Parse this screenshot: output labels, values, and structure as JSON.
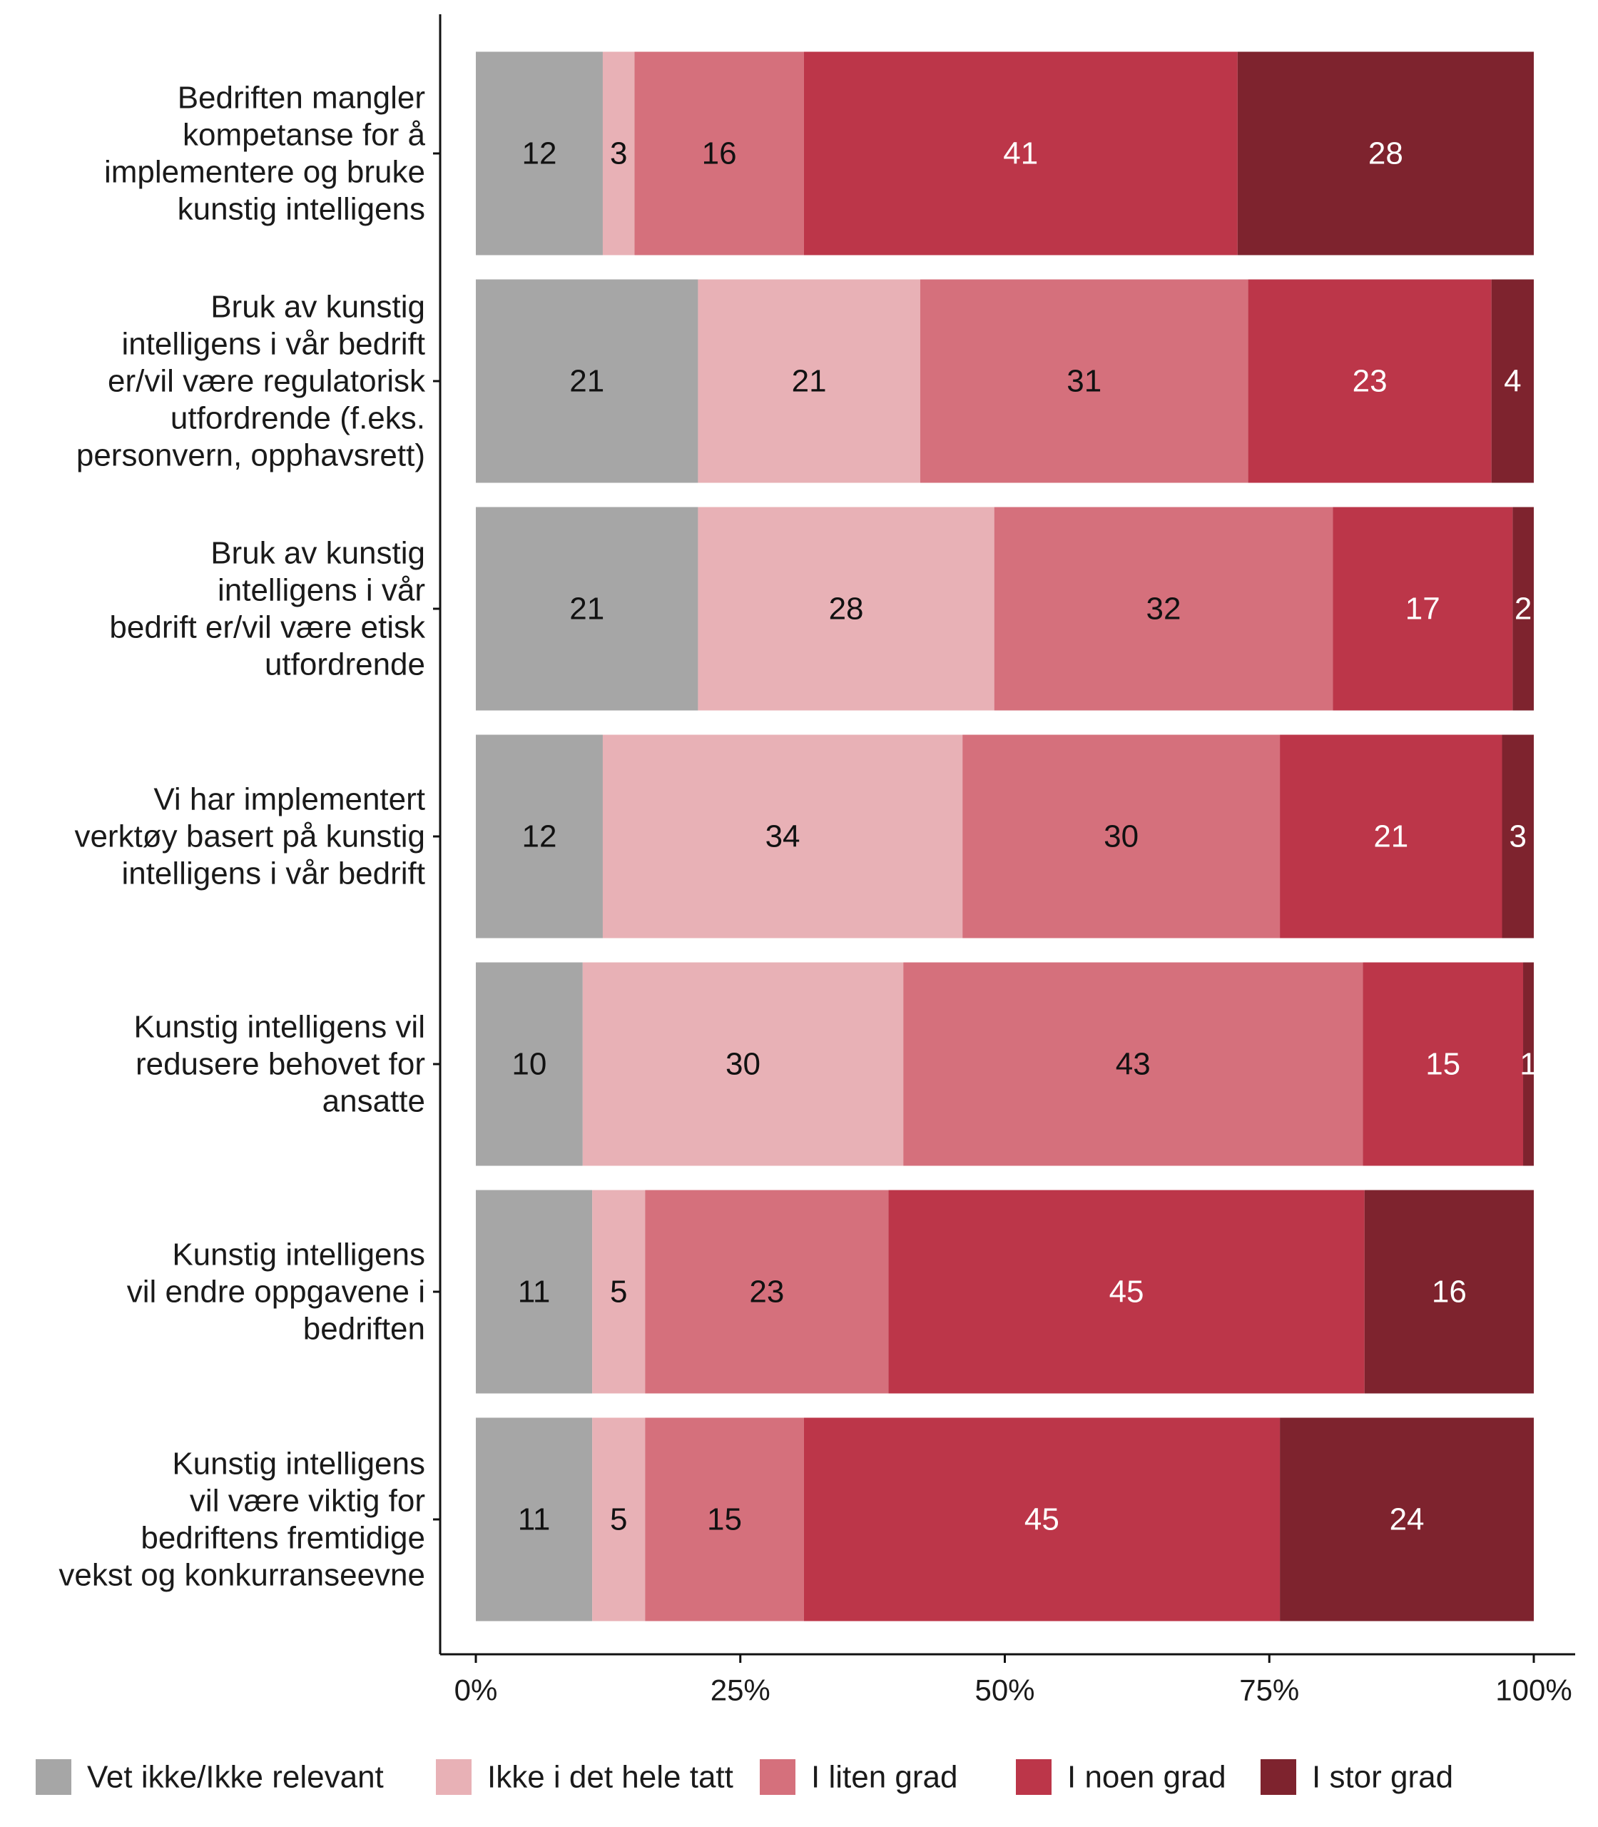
{
  "chart_data": {
    "type": "bar",
    "orientation": "horizontal",
    "stacked": true,
    "title": "",
    "xlabel": "",
    "ylabel": "",
    "xlim": [
      0,
      100
    ],
    "x_ticks": [
      "0%",
      "25%",
      "50%",
      "75%",
      "100%"
    ],
    "x_tick_values": [
      0,
      25,
      50,
      75,
      100
    ],
    "grid": false,
    "legend_position": "bottom",
    "categories": [
      [
        "Bedriften mangler",
        "kompetanse for å",
        "implementere og bruke",
        "kunstig intelligens"
      ],
      [
        "Bruk av kunstig",
        "intelligens i vår bedrift",
        "er/vil være regulatorisk",
        "utfordrende (f.eks.",
        "personvern, opphavsrett)"
      ],
      [
        "Bruk av kunstig",
        "intelligens i vår",
        "bedrift er/vil være etisk",
        "utfordrende"
      ],
      [
        "Vi har implementert",
        "verktøy basert på kunstig",
        "intelligens i vår bedrift"
      ],
      [
        "Kunstig intelligens vil",
        "redusere behovet for",
        "ansatte"
      ],
      [
        "Kunstig intelligens",
        "vil endre oppgavene i",
        "bedriften"
      ],
      [
        "Kunstig intelligens",
        "vil være viktig for",
        "bedriftens fremtidige",
        "vekst og konkurranseevne"
      ]
    ],
    "series": [
      {
        "name": "Vet ikke/Ikke relevant",
        "color": "#a6a6a6",
        "label_color": "#111111",
        "values": [
          12,
          21,
          21,
          12,
          10,
          11,
          11
        ]
      },
      {
        "name": "Ikke i det hele tatt",
        "color": "#e8b1b6",
        "label_color": "#111111",
        "values": [
          3,
          21,
          28,
          34,
          30,
          5,
          5
        ]
      },
      {
        "name": "I liten grad",
        "color": "#d5707c",
        "label_color": "#111111",
        "values": [
          16,
          31,
          32,
          30,
          43,
          23,
          15
        ]
      },
      {
        "name": "I noen grad",
        "color": "#bc3649",
        "label_color": "#ffffff",
        "values": [
          41,
          23,
          17,
          21,
          15,
          45,
          45
        ]
      },
      {
        "name": "I stor grad",
        "color": "#7e232e",
        "label_color": "#ffffff",
        "values": [
          28,
          4,
          2,
          3,
          1,
          16,
          24
        ]
      }
    ]
  }
}
